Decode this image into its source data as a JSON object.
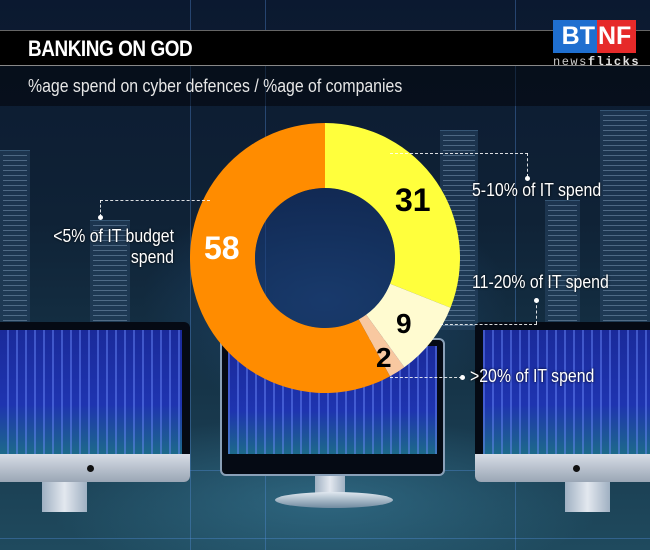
{
  "header": {
    "title": "BANKING ON GOD",
    "subtitle": "%age spend on cyber defences / %age of companies"
  },
  "logo": {
    "left": "BT",
    "right": "NF",
    "tagline_light": "news",
    "tagline_bold": "flicks",
    "colors": {
      "left_bg": "#1f6fd0",
      "right_bg": "#e62a2a"
    }
  },
  "chart_data": {
    "type": "pie",
    "variant": "donut",
    "title": "BANKING ON GOD",
    "subtitle": "%age spend on cyber defences / %age of companies",
    "categories": [
      "5-10% of IT spend",
      "11-20% of IT spend",
      ">20% of IT spend",
      "<5% of IT budget spend"
    ],
    "values": [
      31,
      9,
      2,
      58
    ],
    "colors": [
      "#ffff3c",
      "#fffbd0",
      "#f8c8a0",
      "#ff8c00"
    ],
    "value_label_colors": [
      "#000000",
      "#000000",
      "#000000",
      "#ffffff"
    ],
    "start_angle": "12 o'clock, clockwise",
    "legend": "leader-line labels around chart"
  },
  "labels": {
    "seg_5_10": "5-10% of IT spend",
    "seg_11_20": "11-20% of IT spend",
    "seg_20plus": ">20% of IT spend",
    "seg_lt5_line1": "<5% of IT budget",
    "seg_lt5_line2": "spend"
  },
  "values_display": {
    "v31": "31",
    "v9": "9",
    "v2": "2",
    "v58": "58"
  }
}
